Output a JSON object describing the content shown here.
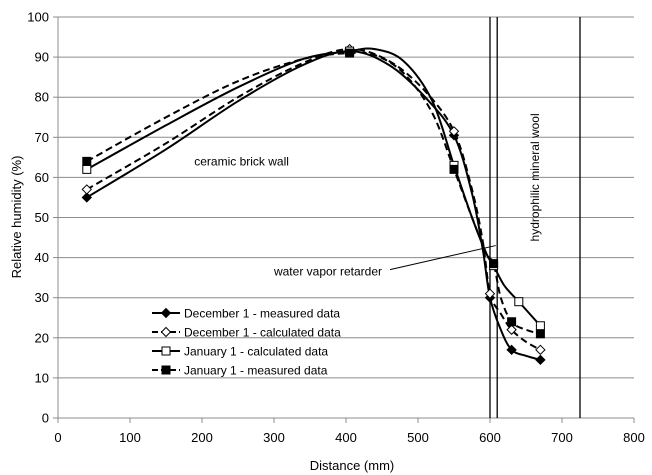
{
  "chart_data": {
    "type": "line",
    "title": "",
    "xlabel": "Distance (mm)",
    "ylabel": "Relative humidity (%)",
    "xlim": [
      0,
      800
    ],
    "ylim": [
      0,
      100
    ],
    "xticks": [
      0,
      100,
      200,
      300,
      400,
      500,
      600,
      700,
      800
    ],
    "yticks": [
      0,
      10,
      20,
      30,
      40,
      50,
      60,
      70,
      80,
      90,
      100
    ],
    "grid": "horizontal",
    "legend_position": "bottom-left",
    "series": [
      {
        "name": "December 1 - measured data",
        "line_style": "solid",
        "marker": "filled-diamond",
        "markers": [
          [
            40,
            55
          ],
          [
            405,
            91.5
          ],
          [
            550,
            70.5
          ],
          [
            600,
            30
          ],
          [
            630,
            17
          ],
          [
            670,
            14.5
          ]
        ],
        "curve": [
          [
            40,
            55
          ],
          [
            150,
            67
          ],
          [
            250,
            79
          ],
          [
            340,
            88
          ],
          [
            405,
            91.5
          ],
          [
            460,
            88
          ],
          [
            510,
            80
          ],
          [
            550,
            70.5
          ],
          [
            575,
            56
          ],
          [
            590,
            42
          ],
          [
            600,
            30
          ],
          [
            615,
            22
          ],
          [
            630,
            17
          ],
          [
            650,
            15.5
          ],
          [
            670,
            14.5
          ]
        ]
      },
      {
        "name": "December 1 - calculated data",
        "line_style": "dashed",
        "marker": "open-diamond",
        "markers": [
          [
            40,
            57
          ],
          [
            405,
            92
          ],
          [
            550,
            71.5
          ],
          [
            600,
            31
          ],
          [
            630,
            22
          ],
          [
            670,
            17
          ]
        ],
        "curve": [
          [
            40,
            57
          ],
          [
            150,
            68.5
          ],
          [
            250,
            80
          ],
          [
            340,
            88.5
          ],
          [
            405,
            92
          ],
          [
            460,
            89
          ],
          [
            510,
            81.5
          ],
          [
            550,
            71.5
          ],
          [
            575,
            57
          ],
          [
            590,
            44
          ],
          [
            600,
            31
          ],
          [
            615,
            26
          ],
          [
            630,
            22
          ],
          [
            650,
            19
          ],
          [
            670,
            17
          ]
        ]
      },
      {
        "name": "January 1 - calculated data",
        "line_style": "solid",
        "marker": "open-square",
        "markers": [
          [
            40,
            62
          ],
          [
            405,
            91.5
          ],
          [
            550,
            63
          ],
          [
            605,
            38
          ],
          [
            640,
            29
          ],
          [
            670,
            23
          ]
        ],
        "curve": [
          [
            40,
            62
          ],
          [
            150,
            73
          ],
          [
            250,
            82.5
          ],
          [
            340,
            89.5
          ],
          [
            405,
            91.5
          ],
          [
            440,
            92
          ],
          [
            480,
            89
          ],
          [
            520,
            79
          ],
          [
            550,
            63
          ],
          [
            575,
            50
          ],
          [
            595,
            41
          ],
          [
            605,
            38
          ],
          [
            620,
            33
          ],
          [
            640,
            29
          ],
          [
            670,
            23
          ]
        ]
      },
      {
        "name": "January 1 - measured data",
        "line_style": "dashed",
        "marker": "filled-square",
        "markers": [
          [
            40,
            64
          ],
          [
            405,
            91
          ],
          [
            550,
            62
          ],
          [
            605,
            38.5
          ],
          [
            630,
            24
          ],
          [
            670,
            21
          ]
        ],
        "curve": [
          [
            40,
            64
          ],
          [
            150,
            75
          ],
          [
            250,
            84
          ],
          [
            340,
            89.5
          ],
          [
            405,
            91
          ],
          [
            440,
            90.5
          ],
          [
            480,
            86
          ],
          [
            520,
            76
          ],
          [
            550,
            62
          ],
          [
            575,
            50
          ],
          [
            595,
            41
          ],
          [
            605,
            38.5
          ],
          [
            615,
            30
          ],
          [
            630,
            24
          ],
          [
            650,
            22
          ],
          [
            670,
            21
          ]
        ]
      }
    ],
    "vertical_lines": [
      600,
      610,
      725
    ],
    "annotations": [
      {
        "text": "ceramic brick wall",
        "x": 255,
        "y": 63,
        "orientation": "horizontal"
      },
      {
        "text": "water vapor retarder",
        "x": 375,
        "y": 35.5,
        "orientation": "horizontal",
        "arrow_to": [
          608,
          43
        ]
      },
      {
        "text": "hydrophilic mineral wool",
        "x": 668,
        "y": 60,
        "orientation": "vertical"
      }
    ]
  }
}
